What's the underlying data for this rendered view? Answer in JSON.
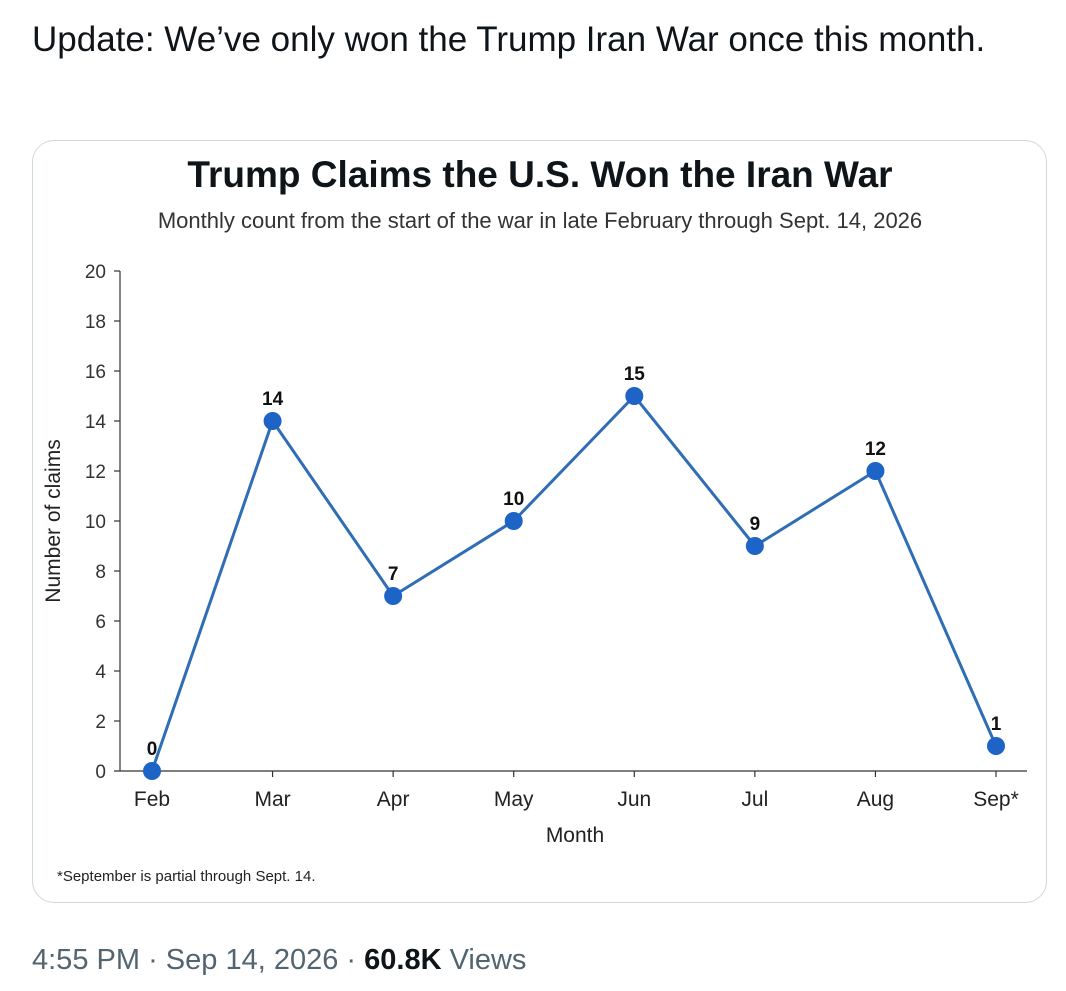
{
  "tweet": {
    "text": "Update: We’ve only won the Trump Iran War once this month.",
    "time": "4:55 PM",
    "separator": "·",
    "date": "Sep 14, 2026",
    "views_count": "60.8K",
    "views_label": "Views"
  },
  "colors": {
    "line": "#2f6db5",
    "point": "#1e63c6",
    "text": "#0f1419",
    "muted": "#536471"
  },
  "chart_data": {
    "type": "line",
    "title": "Trump Claims the U.S. Won the Iran War",
    "subtitle": "Monthly count from the start of the war in late February through Sept. 14, 2026",
    "xlabel": "Month",
    "ylabel": "Number of claims",
    "categories": [
      "Feb",
      "Mar",
      "Apr",
      "May",
      "Jun",
      "Jul",
      "Aug",
      "Sep*"
    ],
    "values": [
      0,
      14,
      7,
      10,
      15,
      9,
      12,
      1
    ],
    "data_labels": [
      "0",
      "14",
      "7",
      "10",
      "15",
      "9",
      "12",
      "1"
    ],
    "ylim": [
      0,
      20
    ],
    "yticks": [
      "0",
      "2",
      "4",
      "6",
      "8",
      "10",
      "12",
      "14",
      "16",
      "18",
      "20"
    ],
    "grid": false,
    "footnote": "*September is partial through Sept. 14."
  }
}
